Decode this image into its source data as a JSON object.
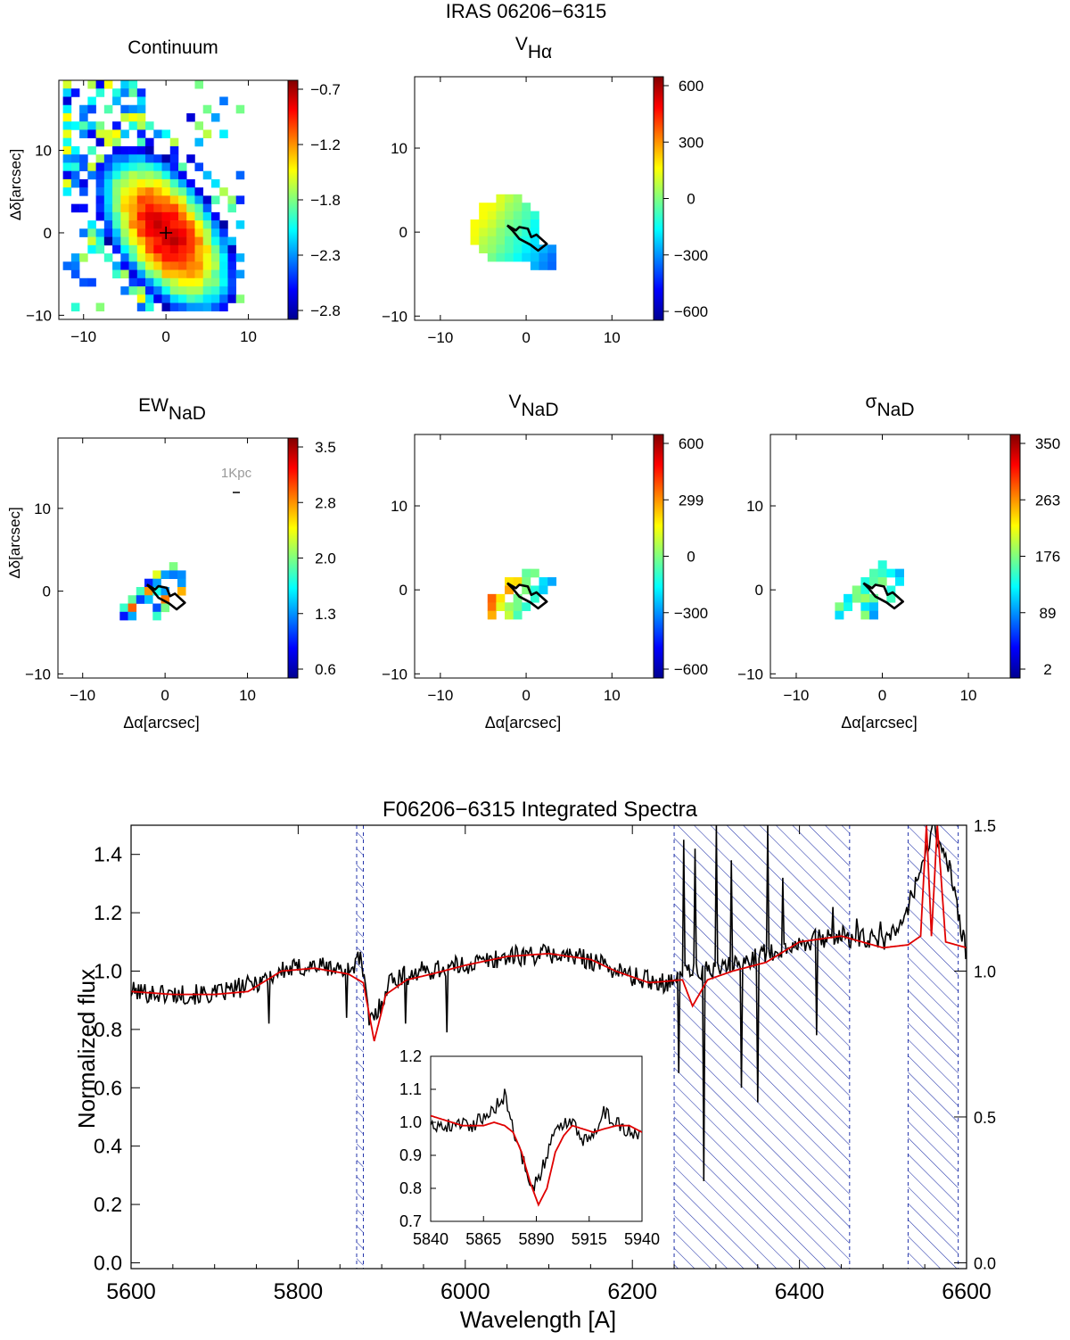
{
  "figure": {
    "title": "IRAS 06206−6315",
    "colors": {
      "line_black": "#000000",
      "model_red": "#e00000",
      "hatch_blue": "#2233aa"
    }
  },
  "chart_data": [
    {
      "type": "heatmap",
      "id": "continuum",
      "title": "Continuum",
      "title_main": "Continuum",
      "title_sub": "",
      "xlabel": "",
      "ylabel": "Δδ[arcsec]",
      "xlim": [
        -13,
        16
      ],
      "ylim": [
        -10.5,
        18.5
      ],
      "xticks": [
        "−10",
        "0",
        "10"
      ],
      "xtick_values": [
        -10,
        0,
        10
      ],
      "yticks": [
        "−10",
        "0",
        "10"
      ],
      "ytick_values": [
        -10,
        0,
        10
      ],
      "colorbar": {
        "ticks": [
          "−0.7",
          "−1.2",
          "−1.8",
          "−2.3",
          "−2.8"
        ],
        "range": [
          -2.8,
          -0.7
        ]
      },
      "center_marker": [
        0,
        0
      ],
      "map": {
        "kind": "blob",
        "cx": 0,
        "cy": 0,
        "sx": 2.8,
        "sy": 4.8,
        "rot": 35,
        "extent": 2.3,
        "sparse_cols": [
          -12,
          8
        ],
        "sparse_rows": [
          -9,
          18
        ],
        "seed": 7
      },
      "contour": []
    },
    {
      "type": "heatmap",
      "id": "v_halpha",
      "title": "V_Hα",
      "title_main": "V",
      "title_sub": "Hα",
      "xlabel": "",
      "ylabel": "",
      "xlim": [
        -13,
        16
      ],
      "ylim": [
        -10.5,
        18.5
      ],
      "xticks": [
        "−10",
        "0",
        "10"
      ],
      "xtick_values": [
        -10,
        0,
        10
      ],
      "yticks": [
        "−10",
        "0",
        "10"
      ],
      "ytick_values": [
        -10,
        0,
        10
      ],
      "colorbar": {
        "ticks": [
          "600",
          "300",
          "0",
          "−300",
          "−600"
        ],
        "range": [
          -600,
          600
        ]
      },
      "map": {
        "kind": "velocity_halpha",
        "seed": 11
      },
      "contour": [
        [
          -2.2,
          0.8
        ],
        [
          -1.2,
          0.2
        ],
        [
          -0.8,
          0.6
        ],
        [
          0.2,
          0.4
        ],
        [
          0.6,
          -0.6
        ],
        [
          1.2,
          -0.3
        ],
        [
          2.4,
          -1.4
        ],
        [
          1.4,
          -2.2
        ],
        [
          0.5,
          -1.5
        ],
        [
          -0.8,
          -0.8
        ],
        [
          -1.6,
          0.2
        ],
        [
          -2.2,
          0.8
        ]
      ]
    },
    {
      "type": "heatmap",
      "id": "ew_nad",
      "title": "EW_NaD",
      "title_main": "EW",
      "title_sub": "NaD",
      "xlabel": "Δα[arcsec]",
      "ylabel": "Δδ[arcsec]",
      "xlim": [
        -13,
        16
      ],
      "ylim": [
        -10.5,
        18.5
      ],
      "xticks": [
        "−10",
        "0",
        "10"
      ],
      "xtick_values": [
        -10,
        0,
        10
      ],
      "yticks": [
        "−10",
        "0",
        "10"
      ],
      "ytick_values": [
        -10,
        0,
        10
      ],
      "colorbar": {
        "ticks": [
          "3.5",
          "2.8",
          "2.0",
          "1.3",
          "0.6"
        ],
        "range": [
          0.6,
          3.5
        ]
      },
      "scale_bar": {
        "label": "1Kpc"
      },
      "map": {
        "kind": "nad_ew",
        "seed": 23
      },
      "contour": [
        [
          -2.2,
          0.8
        ],
        [
          -1.2,
          0.2
        ],
        [
          -0.8,
          0.6
        ],
        [
          0.2,
          0.4
        ],
        [
          0.6,
          -0.6
        ],
        [
          1.2,
          -0.3
        ],
        [
          2.4,
          -1.4
        ],
        [
          1.4,
          -2.2
        ],
        [
          0.5,
          -1.5
        ],
        [
          -0.8,
          -0.8
        ],
        [
          -1.6,
          0.2
        ],
        [
          -2.2,
          0.8
        ]
      ]
    },
    {
      "type": "heatmap",
      "id": "v_nad",
      "title": "V_NaD",
      "title_main": "V",
      "title_sub": "NaD",
      "xlabel": "Δα[arcsec]",
      "ylabel": "",
      "xlim": [
        -13,
        16
      ],
      "ylim": [
        -10.5,
        18.5
      ],
      "xticks": [
        "−10",
        "0",
        "10"
      ],
      "xtick_values": [
        -10,
        0,
        10
      ],
      "yticks": [
        "−10",
        "0",
        "10"
      ],
      "ytick_values": [
        -10,
        0,
        10
      ],
      "colorbar": {
        "ticks": [
          "600",
          "299",
          "0",
          "−300",
          "−600"
        ],
        "range": [
          -600,
          600
        ]
      },
      "map": {
        "kind": "nad_v",
        "seed": 31
      },
      "contour": [
        [
          -2.2,
          0.8
        ],
        [
          -1.2,
          0.2
        ],
        [
          -0.8,
          0.6
        ],
        [
          0.2,
          0.4
        ],
        [
          0.6,
          -0.6
        ],
        [
          1.2,
          -0.3
        ],
        [
          2.4,
          -1.4
        ],
        [
          1.4,
          -2.2
        ],
        [
          0.5,
          -1.5
        ],
        [
          -0.8,
          -0.8
        ],
        [
          -1.6,
          0.2
        ],
        [
          -2.2,
          0.8
        ]
      ]
    },
    {
      "type": "heatmap",
      "id": "sigma_nad",
      "title": "σ_NaD",
      "title_main": "σ",
      "title_sub": "NaD",
      "xlabel": "Δα[arcsec]",
      "ylabel": "",
      "xlim": [
        -13,
        16
      ],
      "ylim": [
        -10.5,
        18.5
      ],
      "xticks": [
        "−10",
        "0",
        "10"
      ],
      "xtick_values": [
        -10,
        0,
        10
      ],
      "yticks": [
        "−10",
        "0",
        "10"
      ],
      "ytick_values": [
        -10,
        0,
        10
      ],
      "colorbar": {
        "ticks": [
          "350",
          "263",
          "176",
          "89",
          "2"
        ],
        "range": [
          2,
          350
        ]
      },
      "map": {
        "kind": "nad_sigma",
        "seed": 47
      },
      "contour": [
        [
          -2.2,
          0.8
        ],
        [
          -1.2,
          0.2
        ],
        [
          -0.8,
          0.6
        ],
        [
          0.2,
          0.4
        ],
        [
          0.6,
          -0.6
        ],
        [
          1.2,
          -0.3
        ],
        [
          2.4,
          -1.4
        ],
        [
          1.4,
          -2.2
        ],
        [
          0.5,
          -1.5
        ],
        [
          -0.8,
          -0.8
        ],
        [
          -1.6,
          0.2
        ],
        [
          -2.2,
          0.8
        ]
      ]
    },
    {
      "type": "line",
      "id": "spectrum",
      "title": "F06206−6315 Integrated Spectra",
      "xlabel": "Wavelength [A]",
      "ylabel": "Normalized flux",
      "xlim": [
        5600,
        6600
      ],
      "ylim": [
        -0.02,
        1.5
      ],
      "xticks": [
        "5600",
        "5800",
        "6000",
        "6200",
        "6400",
        "6600"
      ],
      "xtick_values": [
        5600,
        5800,
        6000,
        6200,
        6400,
        6600
      ],
      "yticks": [
        "0.0",
        "0.2",
        "0.4",
        "0.6",
        "0.8",
        "1.0",
        "1.2",
        "1.4"
      ],
      "ytick_values": [
        0.0,
        0.2,
        0.4,
        0.6,
        0.8,
        1.0,
        1.2,
        1.4
      ],
      "right_axis": {
        "ticks": [
          "0.0",
          "0.5",
          "1.0",
          "1.5"
        ],
        "values": [
          0.0,
          0.5,
          1.0,
          1.5
        ],
        "ylim": [
          -0.02,
          1.5
        ]
      },
      "masked_regions": [
        [
          5870,
          5878
        ],
        [
          6250,
          6460
        ],
        [
          6530,
          6590
        ]
      ],
      "series": [
        {
          "name": "observed",
          "color": "#000000",
          "knots": [
            [
              5600,
              0.93
            ],
            [
              5650,
              0.92
            ],
            [
              5700,
              0.92
            ],
            [
              5740,
              0.95
            ],
            [
              5780,
              1.0
            ],
            [
              5820,
              1.02
            ],
            [
              5860,
              1.0
            ],
            [
              5875,
              1.05
            ],
            [
              5885,
              0.83
            ],
            [
              5895,
              0.86
            ],
            [
              5910,
              0.97
            ],
            [
              5950,
              1.0
            ],
            [
              6000,
              1.02
            ],
            [
              6050,
              1.05
            ],
            [
              6100,
              1.06
            ],
            [
              6150,
              1.04
            ],
            [
              6200,
              0.98
            ],
            [
              6240,
              0.96
            ],
            [
              6260,
              1.0
            ],
            [
              6300,
              1.0
            ],
            [
              6350,
              1.05
            ],
            [
              6400,
              1.1
            ],
            [
              6450,
              1.12
            ],
            [
              6500,
              1.1
            ],
            [
              6520,
              1.15
            ],
            [
              6540,
              1.3
            ],
            [
              6560,
              1.5
            ],
            [
              6580,
              1.35
            ],
            [
              6600,
              1.05
            ]
          ],
          "noise": 0.035,
          "seed": 101,
          "dips": [
            [
              5765,
              0.82
            ],
            [
              5858,
              0.84
            ],
            [
              5928,
              0.82
            ],
            [
              5978,
              0.79
            ],
            [
              6285,
              0.28
            ],
            [
              6256,
              0.65
            ],
            [
              6330,
              0.6
            ],
            [
              6350,
              0.55
            ],
            [
              6420,
              0.78
            ]
          ],
          "spikes": [
            [
              6262,
              1.45
            ],
            [
              6275,
              1.42
            ],
            [
              6300,
              1.5
            ],
            [
              6318,
              1.38
            ],
            [
              6362,
              1.5
            ],
            [
              6380,
              1.32
            ],
            [
              6440,
              1.22
            ],
            [
              6468,
              1.18
            ],
            [
              6497,
              1.17
            ]
          ]
        },
        {
          "name": "model",
          "color": "#e00000",
          "knots": [
            [
              5600,
              0.93
            ],
            [
              5650,
              0.92
            ],
            [
              5700,
              0.92
            ],
            [
              5740,
              0.93
            ],
            [
              5780,
              1.0
            ],
            [
              5820,
              1.01
            ],
            [
              5860,
              0.99
            ],
            [
              5878,
              0.96
            ],
            [
              5891,
              0.76
            ],
            [
              5905,
              0.92
            ],
            [
              5930,
              0.97
            ],
            [
              5960,
              0.99
            ],
            [
              6000,
              1.02
            ],
            [
              6050,
              1.05
            ],
            [
              6100,
              1.06
            ],
            [
              6150,
              1.04
            ],
            [
              6180,
              1.0
            ],
            [
              6220,
              0.96
            ],
            [
              6260,
              0.97
            ],
            [
              6272,
              0.88
            ],
            [
              6290,
              0.97
            ],
            [
              6320,
              1.0
            ],
            [
              6360,
              1.03
            ],
            [
              6400,
              1.1
            ],
            [
              6450,
              1.12
            ],
            [
              6500,
              1.08
            ],
            [
              6530,
              1.09
            ],
            [
              6545,
              1.12
            ],
            [
              6552,
              1.5
            ],
            [
              6558,
              1.12
            ],
            [
              6565,
              1.5
            ],
            [
              6575,
              1.1
            ],
            [
              6600,
              1.08
            ]
          ]
        }
      ],
      "inset": {
        "xlim": [
          5840,
          5940
        ],
        "ylim": [
          0.7,
          1.2
        ],
        "xticks": [
          "5840",
          "5865",
          "5890",
          "5915",
          "5940"
        ],
        "xtick_values": [
          5840,
          5865,
          5890,
          5915,
          5940
        ],
        "yticks": [
          "0.7",
          "0.8",
          "0.9",
          "1.0",
          "1.1",
          "1.2"
        ],
        "ytick_values": [
          0.7,
          0.8,
          0.9,
          1.0,
          1.1,
          1.2
        ],
        "series": [
          {
            "name": "observed",
            "color": "#000000",
            "knots": [
              [
                5840,
                1.0
              ],
              [
                5845,
                0.99
              ],
              [
                5850,
                0.99
              ],
              [
                5855,
                1.0
              ],
              [
                5860,
                0.99
              ],
              [
                5865,
                1.02
              ],
              [
                5870,
                1.04
              ],
              [
                5875,
                1.08
              ],
              [
                5878,
                1.02
              ],
              [
                5880,
                0.94
              ],
              [
                5885,
                0.87
              ],
              [
                5888,
                0.8
              ],
              [
                5891,
                0.83
              ],
              [
                5895,
                0.9
              ],
              [
                5898,
                0.96
              ],
              [
                5903,
                1.0
              ],
              [
                5908,
                1.0
              ],
              [
                5912,
                0.94
              ],
              [
                5918,
                0.98
              ],
              [
                5922,
                1.03
              ],
              [
                5928,
                1.0
              ],
              [
                5934,
                0.97
              ],
              [
                5940,
                0.97
              ]
            ],
            "noise": 0.022,
            "seed": 202
          },
          {
            "name": "model",
            "color": "#e00000",
            "knots": [
              [
                5840,
                1.02
              ],
              [
                5845,
                1.01
              ],
              [
                5850,
                1.0
              ],
              [
                5855,
                0.99
              ],
              [
                5860,
                0.99
              ],
              [
                5865,
                0.99
              ],
              [
                5870,
                1.0
              ],
              [
                5875,
                0.99
              ],
              [
                5879,
                0.97
              ],
              [
                5883,
                0.91
              ],
              [
                5887,
                0.82
              ],
              [
                5891,
                0.75
              ],
              [
                5895,
                0.8
              ],
              [
                5899,
                0.91
              ],
              [
                5903,
                0.96
              ],
              [
                5907,
                0.99
              ],
              [
                5912,
                0.98
              ],
              [
                5917,
                0.97
              ],
              [
                5922,
                0.98
              ],
              [
                5928,
                0.99
              ],
              [
                5934,
                0.99
              ],
              [
                5940,
                0.97
              ]
            ]
          }
        ]
      }
    }
  ]
}
